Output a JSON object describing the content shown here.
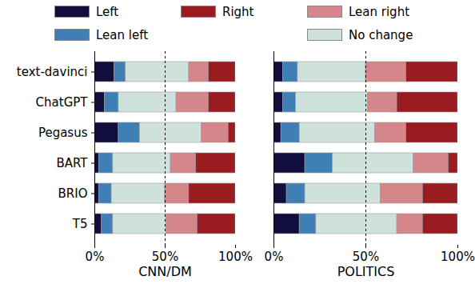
{
  "chart_data": [
    {
      "type": "bar",
      "orientation": "horizontal",
      "stacked": true,
      "xlabel": "CNN/DM",
      "categories": [
        "text-davinci",
        "ChatGPT",
        "Pegasus",
        "BART",
        "BRIO",
        "T5"
      ],
      "series": [
        {
          "name": "Left",
          "color": "#110e3d",
          "values": [
            14,
            7,
            17,
            3,
            3,
            5
          ]
        },
        {
          "name": "Lean left",
          "color": "#3f7fb5",
          "values": [
            8,
            10,
            15,
            10,
            9,
            8
          ]
        },
        {
          "name": "No change",
          "color": "#cfe1db",
          "values": [
            45,
            41,
            44,
            41,
            38,
            38
          ]
        },
        {
          "name": "Lean right",
          "color": "#d4868a",
          "values": [
            14,
            23,
            19,
            18,
            17,
            22
          ]
        },
        {
          "name": "Right",
          "color": "#9a1c20",
          "values": [
            19,
            19,
            5,
            28,
            33,
            27
          ]
        }
      ],
      "xlim": [
        0,
        100
      ],
      "xticks": [
        {
          "value": 0,
          "label": "0%"
        },
        {
          "value": 50,
          "label": "50%"
        },
        {
          "value": 100,
          "label": "100%"
        }
      ],
      "reference_line": 50
    },
    {
      "type": "bar",
      "orientation": "horizontal",
      "stacked": true,
      "xlabel": "POLITICS",
      "tick_labels": "x",
      "categories": [
        "text-davinci",
        "ChatGPT",
        "Pegasus",
        "BART",
        "BRIO",
        "T5"
      ],
      "series": [
        {
          "name": "Left",
          "color": "#110e3d",
          "values": [
            5,
            5,
            4,
            17,
            7,
            14
          ]
        },
        {
          "name": "Lean left",
          "color": "#3f7fb5",
          "values": [
            8,
            7,
            10,
            15,
            10,
            9
          ]
        },
        {
          "name": "No change",
          "color": "#cfe1db",
          "values": [
            37,
            39,
            41,
            44,
            41,
            44
          ]
        },
        {
          "name": "Lean right",
          "color": "#d4868a",
          "values": [
            22,
            16,
            17,
            19,
            23,
            14
          ]
        },
        {
          "name": "Right",
          "color": "#9a1c20",
          "values": [
            28,
            33,
            28,
            5,
            19,
            19
          ]
        }
      ],
      "xlim": [
        0,
        100
      ],
      "xticks": [
        {
          "value": 0,
          "label": "0%"
        },
        {
          "value": 50,
          "label": "50%"
        },
        {
          "value": 100,
          "label": "100%"
        }
      ],
      "reference_line": 50
    }
  ]
}
